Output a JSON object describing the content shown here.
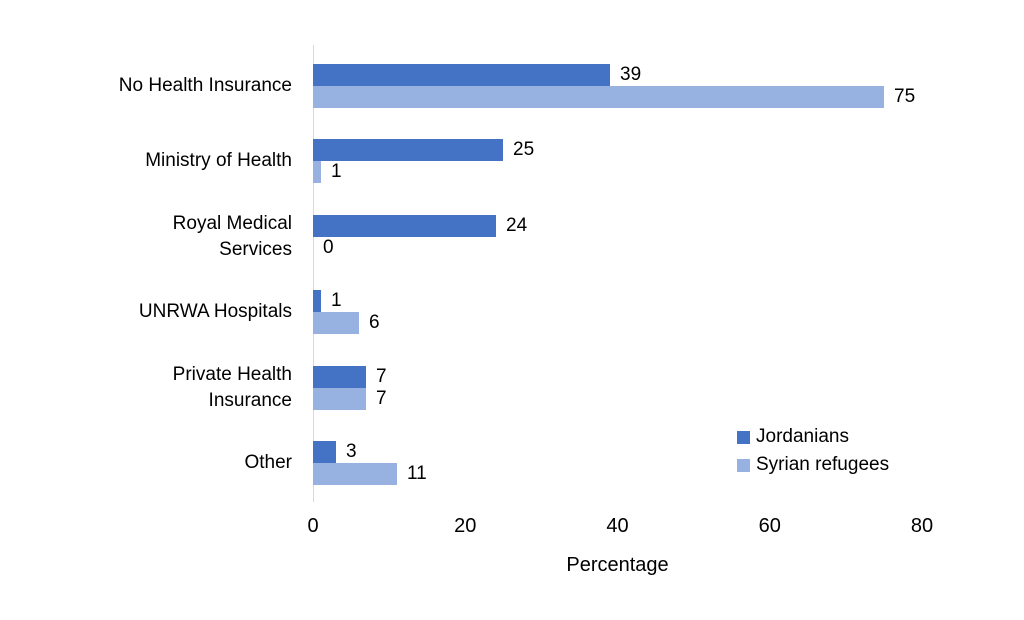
{
  "chart_data": {
    "type": "bar",
    "orientation": "horizontal",
    "categories": [
      "No Health Insurance",
      "Ministry of Health",
      "Royal Medical\nServices",
      "UNRWA Hospitals",
      "Private Health\nInsurance",
      "Other"
    ],
    "series": [
      {
        "name": "Jordanians",
        "color": "#4472c4",
        "values": [
          39,
          25,
          24,
          1,
          7,
          3
        ]
      },
      {
        "name": "Syrian refugees",
        "color": "#97b1e0",
        "values": [
          75,
          1,
          0,
          6,
          7,
          11
        ]
      }
    ],
    "title": "",
    "xlabel": "Percentage",
    "ylabel": "",
    "xlim": [
      0,
      80
    ],
    "xticks": [
      0,
      20,
      40,
      60,
      80
    ],
    "grid": false,
    "data_labels": true,
    "legend_position": "inside-right-bottom",
    "axis_line_color": "#d9d9d9",
    "text_color": "#000000"
  }
}
